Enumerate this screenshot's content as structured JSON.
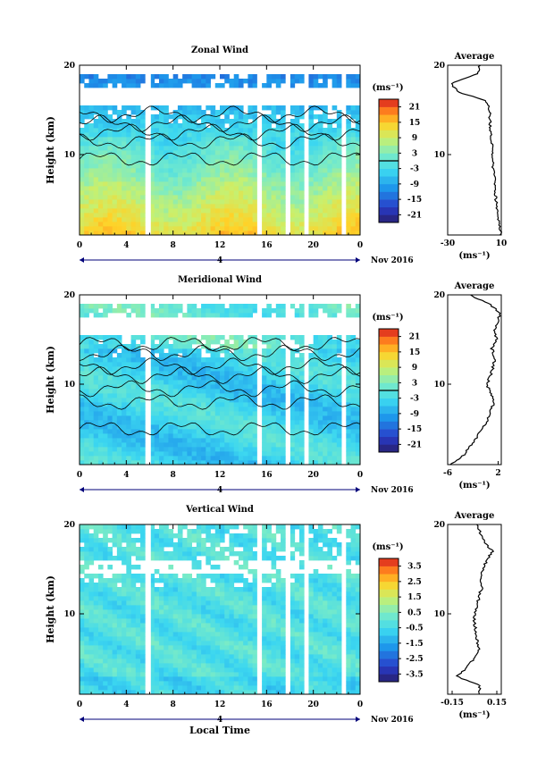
{
  "chart_data": [
    {
      "type": "heatmap",
      "title": "Zonal Wind",
      "ylabel": "Height (km)",
      "xticks": [
        "0",
        "4",
        "8",
        "12",
        "16",
        "20",
        "0"
      ],
      "yticks": [
        "20",
        "10"
      ],
      "xlim": [
        0,
        24
      ],
      "ylim": [
        1,
        20
      ],
      "day_label": "4",
      "month_label": "Nov 2016",
      "colorbar": {
        "unit": "(ms⁻¹)",
        "ticks": [
          "21",
          "15",
          "9",
          "3",
          "-3",
          "-9",
          "-15",
          "-21"
        ],
        "range": [
          -24,
          24
        ],
        "zero_line": 0
      },
      "contours": true,
      "profile": {
        "title": "Average",
        "xlabel": "(ms⁻¹)",
        "xticks": [
          "-30",
          "10"
        ],
        "xlim": [
          -30,
          10
        ],
        "heights": [
          1,
          2,
          3,
          4,
          5,
          6,
          7,
          8,
          9,
          10,
          11,
          12,
          13,
          14,
          15,
          16,
          17,
          18,
          19,
          20
        ],
        "values": [
          9.5,
          9,
          8,
          7,
          6,
          5.5,
          5,
          4.5,
          3.5,
          3,
          3,
          2.5,
          2,
          1.5,
          1.5,
          -1,
          -22,
          -28,
          -8,
          -6
        ]
      }
    },
    {
      "type": "heatmap",
      "title": "Meridional Wind",
      "ylabel": "Height (km)",
      "xticks": [
        "0",
        "4",
        "8",
        "12",
        "16",
        "20",
        "0"
      ],
      "yticks": [
        "20",
        "10"
      ],
      "xlim": [
        0,
        24
      ],
      "ylim": [
        1,
        20
      ],
      "day_label": "4",
      "month_label": "Nov 2016",
      "colorbar": {
        "unit": "(ms⁻¹)",
        "ticks": [
          "21",
          "15",
          "9",
          "3",
          "-3",
          "-9",
          "-15",
          "-21"
        ],
        "range": [
          -24,
          24
        ],
        "zero_line": 0
      },
      "contours": true,
      "profile": {
        "title": "Average",
        "xlabel": "(ms⁻¹)",
        "xticks": [
          "-6",
          "2"
        ],
        "xlim": [
          -6,
          2.5
        ],
        "heights": [
          1,
          2,
          3,
          4,
          5,
          6,
          7,
          8,
          9,
          10,
          11,
          12,
          13,
          14,
          15,
          16,
          17,
          18,
          19,
          20
        ],
        "values": [
          -5.5,
          -3.5,
          -2.5,
          -1.5,
          -0.5,
          0.3,
          0.8,
          1.4,
          0.8,
          0.2,
          0.8,
          1.2,
          1.5,
          1.0,
          1.8,
          1.5,
          1.9,
          2.3,
          0.5,
          -2.5
        ]
      }
    },
    {
      "type": "heatmap",
      "title": "Vertical Wind",
      "ylabel": "Height (km)",
      "xlabel": "Local Time",
      "xticks": [
        "0",
        "4",
        "8",
        "12",
        "16",
        "20",
        "0"
      ],
      "yticks": [
        "20",
        "10"
      ],
      "xlim": [
        0,
        24
      ],
      "ylim": [
        1,
        20
      ],
      "day_label": "4",
      "month_label": "Nov 2016",
      "colorbar": {
        "unit": "(ms⁻¹)",
        "ticks": [
          "3.5",
          "2.5",
          "1.5",
          "0.5",
          "-0.5",
          "-1.5",
          "-2.5",
          "-3.5"
        ],
        "range": [
          -4,
          4
        ],
        "zero_line": null
      },
      "contours": false,
      "profile": {
        "title": "Average",
        "xlabel": "(ms⁻¹)",
        "xticks": [
          "-0.15",
          "0.15"
        ],
        "xlim": [
          -0.18,
          0.18
        ],
        "heights": [
          1,
          2,
          3,
          4,
          5,
          6,
          7,
          8,
          9,
          10,
          11,
          12,
          13,
          14,
          15,
          16,
          17,
          18,
          19,
          20
        ],
        "values": [
          0.04,
          0.03,
          -0.12,
          -0.05,
          0.0,
          0.03,
          0.02,
          0.01,
          0.0,
          0.0,
          0.02,
          0.03,
          0.05,
          0.04,
          0.06,
          0.08,
          0.12,
          0.07,
          0.04,
          0.02
        ]
      }
    }
  ]
}
